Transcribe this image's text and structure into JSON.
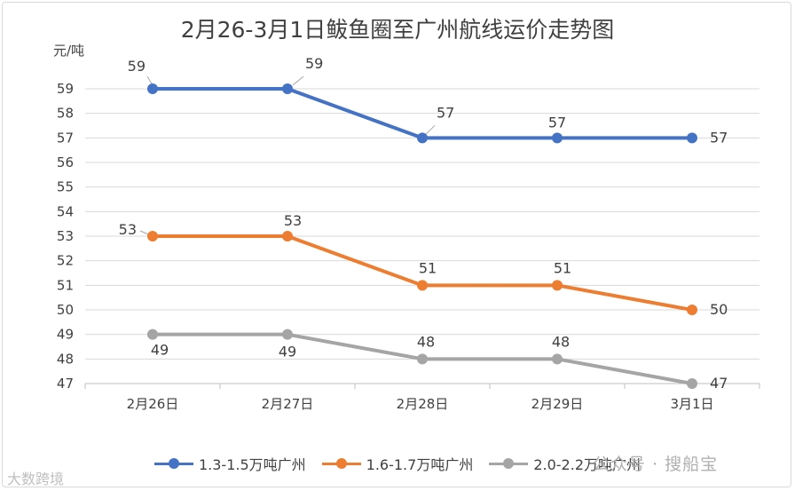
{
  "chart_data": {
    "type": "line",
    "title": "2月26-3月1日鲅鱼圈至广州航线运价走势图",
    "ylabel": "元/吨",
    "xlabel": "",
    "categories": [
      "2月26日",
      "2月27日",
      "2月28日",
      "2月29日",
      "3月1日"
    ],
    "ylim": [
      47,
      59
    ],
    "yticks": [
      47,
      48,
      49,
      50,
      51,
      52,
      53,
      54,
      55,
      56,
      57,
      58,
      59
    ],
    "grid": true,
    "legend_position": "bottom",
    "series": [
      {
        "name": "1.3-1.5万吨广州",
        "color": "#4472c4",
        "values": [
          59,
          59,
          57,
          57,
          57
        ]
      },
      {
        "name": "1.6-1.7万吨广州",
        "color": "#ed7d31",
        "values": [
          53,
          53,
          51,
          51,
          50
        ]
      },
      {
        "name": "2.0-2.2万吨广州",
        "color": "#a5a5a5",
        "values": [
          49,
          49,
          48,
          48,
          47
        ]
      }
    ]
  },
  "watermarks": {
    "left": "大数跨境",
    "right": "公众号 · 搜船宝"
  }
}
